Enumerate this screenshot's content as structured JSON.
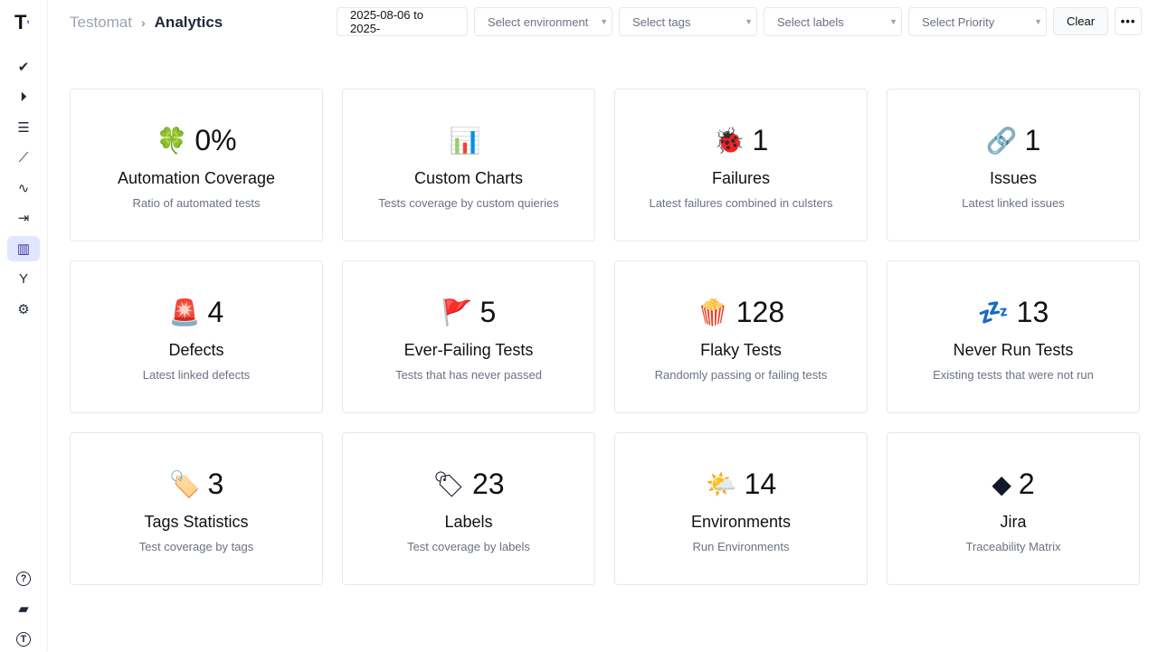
{
  "app": {
    "logo": "T"
  },
  "sidebar": {
    "items": [
      {
        "name": "tests",
        "icon": "✔"
      },
      {
        "name": "runs",
        "icon": "⏵"
      },
      {
        "name": "plans",
        "icon": "☰"
      },
      {
        "name": "steps",
        "icon": "⟋"
      },
      {
        "name": "pulse",
        "icon": "∿"
      },
      {
        "name": "imports",
        "icon": "⇥"
      },
      {
        "name": "analytics",
        "icon": "▥",
        "active": true
      },
      {
        "name": "branches",
        "icon": "Y"
      },
      {
        "name": "settings",
        "icon": "⚙"
      }
    ],
    "bottom": [
      {
        "name": "help",
        "icon": "?"
      },
      {
        "name": "projects",
        "icon": "▰"
      },
      {
        "name": "profile",
        "icon": "T"
      }
    ]
  },
  "breadcrumb": {
    "root": "Testomat",
    "sep": "›",
    "current": "Analytics"
  },
  "filters": {
    "date": "2025-08-06 to 2025-",
    "environment": "Select environment",
    "tags": "Select tags",
    "labels": "Select labels",
    "priority": "Select Priority",
    "clear": "Clear",
    "more": "•••"
  },
  "cards": [
    {
      "emoji": "🍀",
      "value": "0%",
      "title": "Automation Coverage",
      "desc": "Ratio of automated tests"
    },
    {
      "emoji": "📊",
      "value": "",
      "title": "Custom Charts",
      "desc": "Tests coverage by custom quieries"
    },
    {
      "emoji": "🐞",
      "value": "1",
      "title": "Failures",
      "desc": "Latest failures combined in culsters"
    },
    {
      "emoji": "🔗",
      "value": "1",
      "title": "Issues",
      "desc": "Latest linked issues"
    },
    {
      "emoji": "🚨",
      "value": "4",
      "title": "Defects",
      "desc": "Latest linked defects"
    },
    {
      "emoji": "🚩",
      "value": "5",
      "title": "Ever-Failing Tests",
      "desc": "Tests that has never passed"
    },
    {
      "emoji": "🍿",
      "value": "128",
      "title": "Flaky Tests",
      "desc": "Randomly passing or failing tests"
    },
    {
      "emoji": "💤",
      "value": "13",
      "title": "Never Run Tests",
      "desc": "Existing tests that were not run"
    },
    {
      "emoji": "🏷️",
      "value": "3",
      "title": "Tags Statistics",
      "desc": "Test coverage by tags"
    },
    {
      "emoji": "🏷",
      "value": "23",
      "title": "Labels",
      "desc": "Test coverage by labels"
    },
    {
      "emoji": "🌤️",
      "value": "14",
      "title": "Environments",
      "desc": "Run Environments"
    },
    {
      "emoji": "◆",
      "value": "2",
      "title": "Jira",
      "desc": "Traceability Matrix"
    }
  ]
}
